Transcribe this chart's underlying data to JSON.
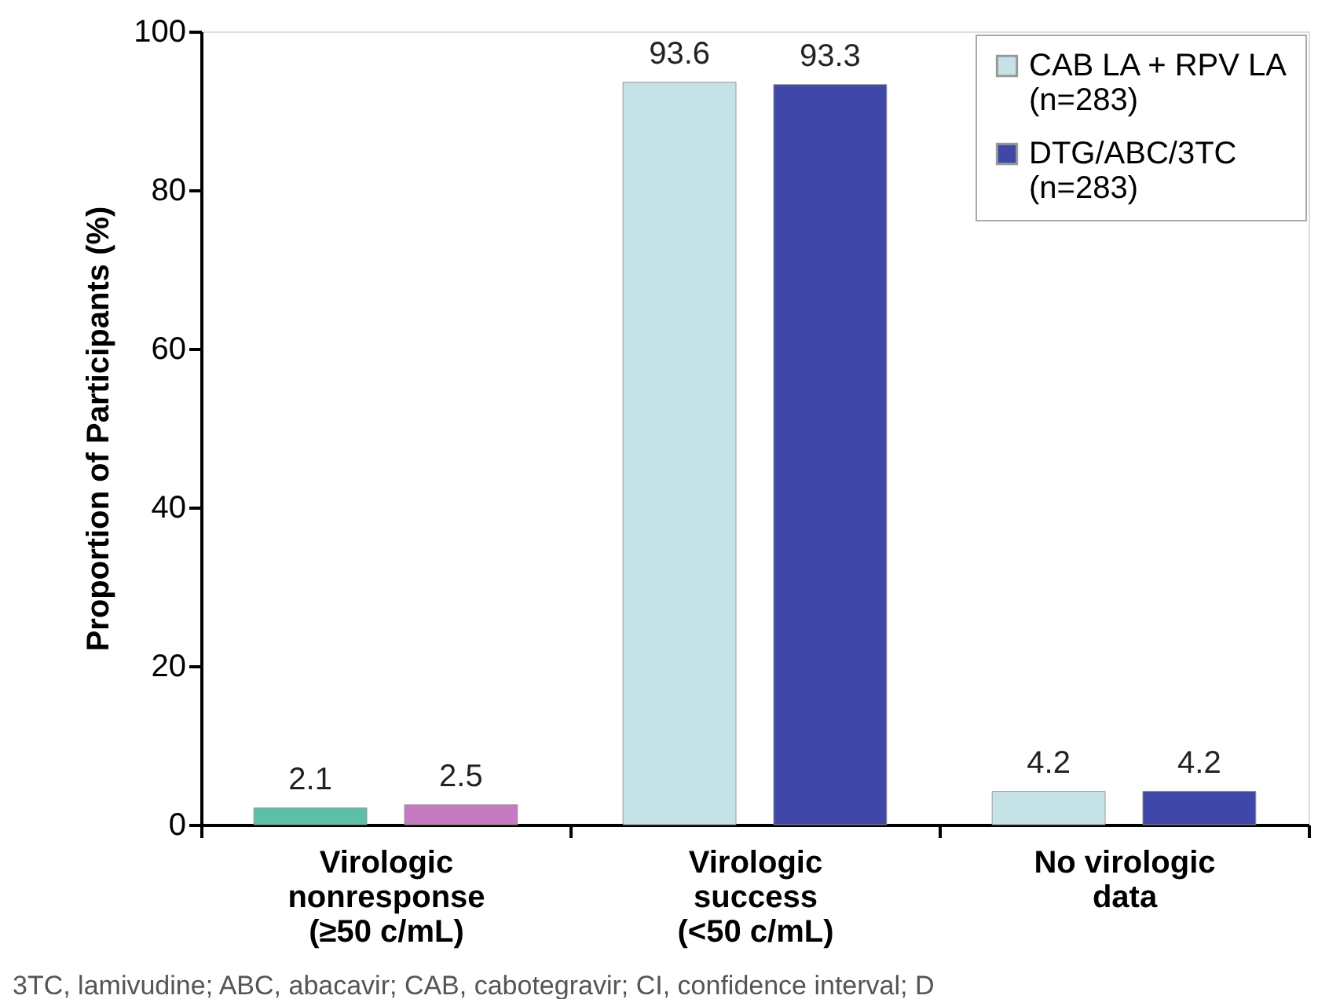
{
  "chart_data": {
    "type": "bar",
    "ylabel": "Proportion of Participants (%)",
    "categories": [
      "Virologic\nnonresponse\n(≥50 c/mL)",
      "Virologic\nsuccess\n(<50 c/mL)",
      "No virologic\ndata"
    ],
    "series": [
      {
        "name": "CAB LA + RPV LA (n=283)",
        "color": "#c5e3e6",
        "colors": [
          "#5dbfa8",
          "#c5e3e6",
          "#c5e3e6"
        ],
        "values": [
          2.1,
          93.6,
          4.2
        ]
      },
      {
        "name": "DTG/ABC/3TC (n=283)",
        "color": "#3f47a8",
        "colors": [
          "#c77ac0",
          "#3f47a8",
          "#3f47a8"
        ],
        "values": [
          2.5,
          93.3,
          4.2
        ]
      }
    ],
    "ylim": [
      0,
      100
    ],
    "yticks": [
      0,
      20,
      40,
      60,
      80,
      100
    ],
    "grid": false,
    "legend": "top right",
    "data_labels": true,
    "annotations": [
      "3TC, lamivudine; ABC, abacavir; CAB, cabotegravir; CI, confidence interval; D"
    ]
  }
}
